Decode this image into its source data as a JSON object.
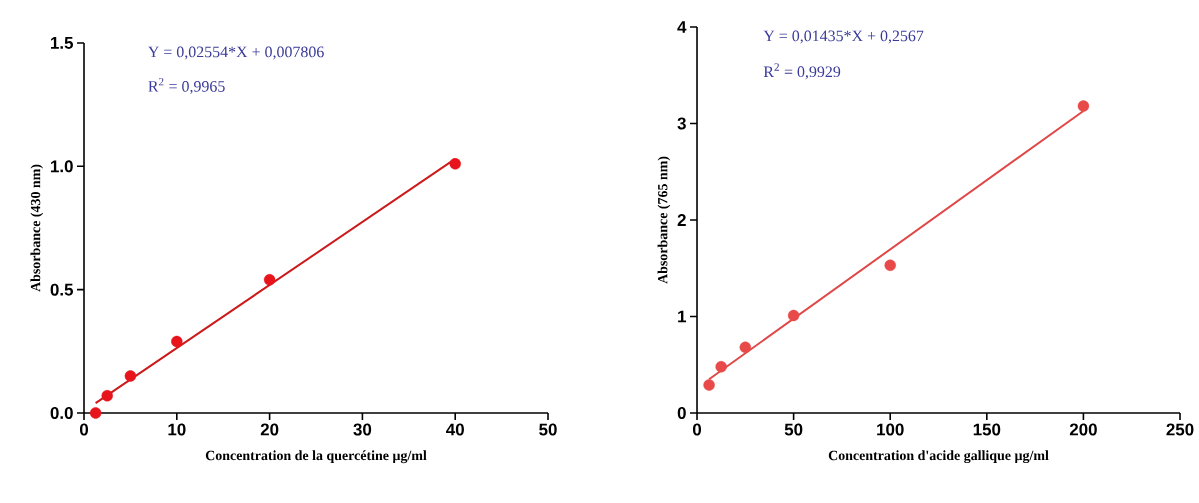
{
  "chart_data": [
    {
      "type": "scatter",
      "xlabel": "Concentration de la quercétine µg/ml",
      "ylabel": "Absorbance (430 nm)",
      "annotations": [
        "Y = 0,02554*X + 0,007806",
        "R$^{2}$ = 0,9965"
      ],
      "marker": "circle",
      "series": [
        {
          "x": [
            1.25,
            2.5,
            5,
            10,
            20,
            40
          ],
          "values": [
            0.0,
            0.07,
            0.15,
            0.29,
            0.54,
            1.01
          ],
          "color": "#e8141c"
        },
        {
          "type": "line",
          "marker": "none",
          "x": [
            1.25,
            40
          ],
          "values": [
            0.04,
            1.03
          ],
          "color": "#cc1a1a"
        }
      ],
      "xlim": [
        0,
        50
      ],
      "xticks": [
        0,
        10,
        20,
        30,
        40,
        50
      ],
      "ylim": [
        0,
        1.5
      ],
      "yticks": [
        {
          "value": 0,
          "label": "0.0"
        },
        {
          "value": 0.5,
          "label": "0.5"
        },
        {
          "value": 1,
          "label": "1.0"
        },
        {
          "value": 1.5,
          "label": "1.5"
        }
      ]
    },
    {
      "type": "scatter",
      "xlabel": "Concentration d'acide gallique µg/ml",
      "ylabel": "Absorbance (765 nm)",
      "annotations": [
        "Y = 0,01435*X + 0,2567",
        "R$^{2}$ = 0,9929"
      ],
      "marker": "circle",
      "series": [
        {
          "x": [
            6.25,
            12.5,
            25,
            50,
            100,
            200
          ],
          "values": [
            0.29,
            0.48,
            0.68,
            1.01,
            1.53,
            3.18
          ],
          "color": "#e84a4a"
        },
        {
          "type": "line",
          "marker": "none",
          "x": [
            6.25,
            200
          ],
          "values": [
            0.35,
            3.13
          ],
          "color": "#e04848"
        }
      ],
      "xlim": [
        0,
        250
      ],
      "xticks": [
        0,
        50,
        100,
        150,
        200,
        250
      ],
      "ylim": [
        0,
        4
      ],
      "yticks": [
        0,
        1,
        2,
        3,
        4
      ]
    }
  ]
}
